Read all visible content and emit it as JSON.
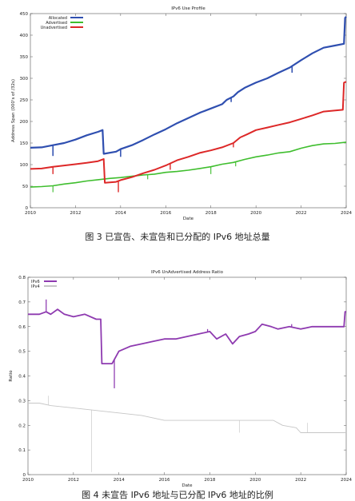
{
  "chart_data": [
    {
      "type": "line",
      "title": "IPv6 Use Profile",
      "xlabel": "Date",
      "ylabel": "Address Span (000's of /32s)",
      "xlim": [
        2010,
        2024
      ],
      "ylim": [
        0,
        450
      ],
      "xticks": [
        2010,
        2012,
        2014,
        2016,
        2018,
        2020,
        2022,
        2024
      ],
      "yticks": [
        0,
        50,
        100,
        150,
        200,
        250,
        300,
        350,
        400,
        450
      ],
      "grid": false,
      "legend": "top-left",
      "series": [
        {
          "name": "Allocated",
          "color": "#2f4fb0",
          "points": [
            [
              2010,
              139
            ],
            [
              2010.5,
              140
            ],
            [
              2011,
              145
            ],
            [
              2011.5,
              150
            ],
            [
              2012,
              158
            ],
            [
              2012.5,
              168
            ],
            [
              2013,
              176
            ],
            [
              2013.2,
              180
            ],
            [
              2013.25,
              125
            ],
            [
              2013.8,
              130
            ],
            [
              2014,
              136
            ],
            [
              2014.5,
              145
            ],
            [
              2015,
              157
            ],
            [
              2015.5,
              170
            ],
            [
              2016,
              182
            ],
            [
              2016.5,
              196
            ],
            [
              2017,
              208
            ],
            [
              2017.5,
              220
            ],
            [
              2018,
              230
            ],
            [
              2018.5,
              240
            ],
            [
              2018.7,
              250
            ],
            [
              2019,
              258
            ],
            [
              2019.2,
              268
            ],
            [
              2019.5,
              278
            ],
            [
              2020,
              290
            ],
            [
              2020.5,
              300
            ],
            [
              2021,
              313
            ],
            [
              2021.5,
              325
            ],
            [
              2022,
              342
            ],
            [
              2022.5,
              358
            ],
            [
              2023,
              371
            ],
            [
              2023.5,
              376
            ],
            [
              2023.9,
              380
            ],
            [
              2023.95,
              440
            ],
            [
              2024,
              443
            ]
          ],
          "spikes": [
            [
              2011.0,
              120
            ],
            [
              2014.0,
              118
            ],
            [
              2018.9,
              245
            ],
            [
              2021.6,
              313
            ]
          ]
        },
        {
          "name": "Advertised",
          "color": "#3fbe2e",
          "points": [
            [
              2010,
              48
            ],
            [
              2010.5,
              49
            ],
            [
              2011,
              51
            ],
            [
              2011.5,
              55
            ],
            [
              2012,
              58
            ],
            [
              2012.5,
              62
            ],
            [
              2013,
              65
            ],
            [
              2013.5,
              68
            ],
            [
              2014,
              70
            ],
            [
              2014.5,
              73
            ],
            [
              2015,
              76
            ],
            [
              2015.5,
              78
            ],
            [
              2016,
              82
            ],
            [
              2016.5,
              84
            ],
            [
              2017,
              87
            ],
            [
              2017.5,
              91
            ],
            [
              2018,
              95
            ],
            [
              2018.5,
              101
            ],
            [
              2019,
              105
            ],
            [
              2019.5,
              112
            ],
            [
              2020,
              118
            ],
            [
              2020.5,
              122
            ],
            [
              2021,
              127
            ],
            [
              2021.5,
              130
            ],
            [
              2022,
              138
            ],
            [
              2022.5,
              144
            ],
            [
              2023,
              148
            ],
            [
              2023.5,
              149
            ],
            [
              2024,
              152
            ]
          ],
          "spikes": [
            [
              2011.0,
              36
            ],
            [
              2015.2,
              66
            ],
            [
              2018.0,
              78
            ],
            [
              2019.1,
              96
            ]
          ]
        },
        {
          "name": "Unadvertised",
          "color": "#dd2828",
          "points": [
            [
              2010,
              90
            ],
            [
              2010.5,
              91
            ],
            [
              2011,
              95
            ],
            [
              2011.5,
              98
            ],
            [
              2012,
              101
            ],
            [
              2012.5,
              104
            ],
            [
              2013,
              108
            ],
            [
              2013.25,
              113
            ],
            [
              2013.3,
              58
            ],
            [
              2013.8,
              60
            ],
            [
              2014,
              64
            ],
            [
              2014.5,
              71
            ],
            [
              2015,
              80
            ],
            [
              2015.5,
              88
            ],
            [
              2016,
              98
            ],
            [
              2016.5,
              110
            ],
            [
              2017,
              118
            ],
            [
              2017.5,
              127
            ],
            [
              2018,
              133
            ],
            [
              2018.5,
              140
            ],
            [
              2019,
              150
            ],
            [
              2019.3,
              163
            ],
            [
              2019.6,
              170
            ],
            [
              2020,
              180
            ],
            [
              2020.5,
              186
            ],
            [
              2021,
              192
            ],
            [
              2021.5,
              198
            ],
            [
              2022,
              206
            ],
            [
              2022.5,
              214
            ],
            [
              2023,
              223
            ],
            [
              2023.85,
              227
            ],
            [
              2023.9,
              290
            ],
            [
              2024,
              292
            ]
          ],
          "spikes": [
            [
              2011.0,
              78
            ],
            [
              2013.9,
              36
            ],
            [
              2016.2,
              88
            ],
            [
              2019.0,
              140
            ]
          ]
        }
      ]
    },
    {
      "type": "line",
      "title": "IPv6 UnAdvertised Address Ratio",
      "xlabel": "Date",
      "ylabel": "Ratio",
      "xlim": [
        2010,
        2024
      ],
      "ylim": [
        0,
        0.8
      ],
      "xticks": [
        2010,
        2012,
        2014,
        2016,
        2018,
        2020,
        2022,
        2024
      ],
      "yticks": [
        0,
        0.1,
        0.2,
        0.3,
        0.4,
        0.5,
        0.6,
        0.7,
        0.8
      ],
      "grid": false,
      "legend": "top-left",
      "series": [
        {
          "name": "IPv6",
          "color": "#8e3ab0",
          "points": [
            [
              2010,
              0.65
            ],
            [
              2010.5,
              0.65
            ],
            [
              2010.8,
              0.66
            ],
            [
              2011,
              0.65
            ],
            [
              2011.3,
              0.67
            ],
            [
              2011.6,
              0.65
            ],
            [
              2012,
              0.64
            ],
            [
              2012.5,
              0.65
            ],
            [
              2013,
              0.63
            ],
            [
              2013.2,
              0.63
            ],
            [
              2013.25,
              0.45
            ],
            [
              2013.7,
              0.45
            ],
            [
              2014,
              0.5
            ],
            [
              2014.5,
              0.52
            ],
            [
              2015,
              0.53
            ],
            [
              2015.5,
              0.54
            ],
            [
              2016,
              0.55
            ],
            [
              2016.5,
              0.55
            ],
            [
              2017,
              0.56
            ],
            [
              2017.5,
              0.57
            ],
            [
              2018,
              0.58
            ],
            [
              2018.3,
              0.55
            ],
            [
              2018.7,
              0.57
            ],
            [
              2019,
              0.53
            ],
            [
              2019.3,
              0.56
            ],
            [
              2019.7,
              0.57
            ],
            [
              2020,
              0.58
            ],
            [
              2020.3,
              0.61
            ],
            [
              2020.7,
              0.6
            ],
            [
              2021,
              0.59
            ],
            [
              2021.5,
              0.6
            ],
            [
              2022,
              0.59
            ],
            [
              2022.5,
              0.6
            ],
            [
              2023,
              0.6
            ],
            [
              2023.9,
              0.6
            ],
            [
              2023.95,
              0.66
            ],
            [
              2024,
              0.66
            ]
          ],
          "spikes": [
            [
              2010.8,
              0.71
            ],
            [
              2013.8,
              0.35
            ],
            [
              2017.9,
              0.59
            ],
            [
              2021.6,
              0.61
            ]
          ]
        },
        {
          "name": "IPv4",
          "color": "#c6c6c6",
          "points": [
            [
              2010,
              0.29
            ],
            [
              2010.5,
              0.29
            ],
            [
              2011,
              0.28
            ],
            [
              2012,
              0.27
            ],
            [
              2013,
              0.26
            ],
            [
              2014,
              0.25
            ],
            [
              2015,
              0.24
            ],
            [
              2016,
              0.22
            ],
            [
              2017,
              0.22
            ],
            [
              2018,
              0.22
            ],
            [
              2019,
              0.22
            ],
            [
              2020,
              0.22
            ],
            [
              2020.8,
              0.22
            ],
            [
              2021.2,
              0.2
            ],
            [
              2021.8,
              0.19
            ],
            [
              2022,
              0.17
            ],
            [
              2023,
              0.17
            ],
            [
              2024,
              0.17
            ]
          ],
          "spikes": [
            [
              2010.9,
              0.32
            ],
            [
              2012.8,
              0.01
            ],
            [
              2019.3,
              0.17
            ],
            [
              2022.3,
              0.21
            ]
          ]
        }
      ]
    }
  ],
  "captions": {
    "fig3": "图 3  已宣告、未宣告和已分配的 IPv6 地址总量",
    "fig4": "图 4  未宣告 IPv6 地址与已分配 IPv6 地址的比例"
  }
}
